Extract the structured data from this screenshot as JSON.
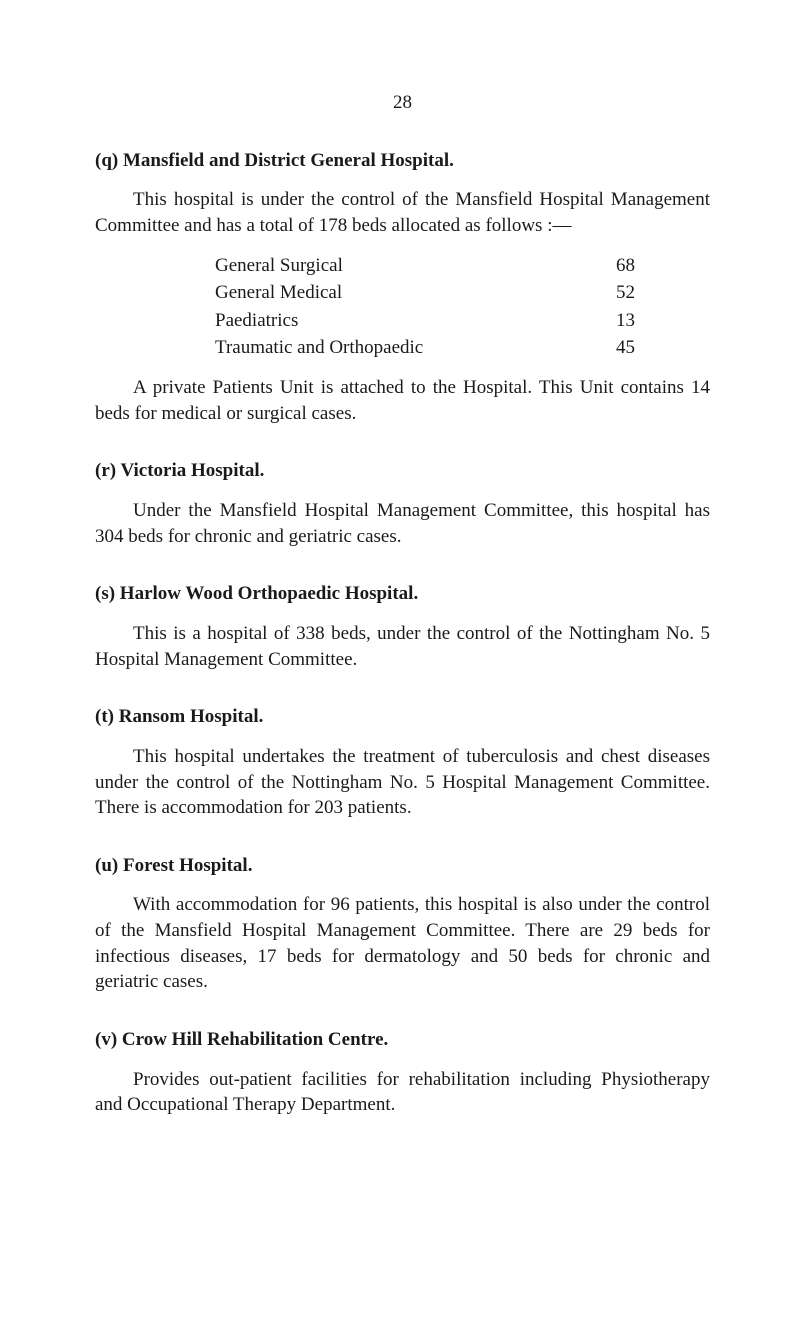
{
  "page_number": "28",
  "sections": {
    "q": {
      "heading": "(q) Mansfield and District General Hospital.",
      "para1": "This hospital is under the control of the Mansfield Hospital Management Committee and has a total of 178 beds allocated as follows :—",
      "beds": [
        {
          "label": "General Surgical",
          "value": "68"
        },
        {
          "label": "General Medical",
          "value": "52"
        },
        {
          "label": "Paediatrics",
          "value": "13"
        },
        {
          "label": "Traumatic and Orthopaedic",
          "value": "45"
        }
      ],
      "para2": "A private Patients Unit is attached to the Hospital. This Unit contains 14 beds for medical or surgical cases."
    },
    "r": {
      "heading": "(r) Victoria Hospital.",
      "para1": "Under the Mansfield Hospital Management Committee, this hospital has 304 beds for chronic and geriatric cases."
    },
    "s": {
      "heading": "(s) Harlow Wood Orthopaedic Hospital.",
      "para1": "This is a hospital of 338 beds, under the control of the Nottingham No. 5 Hospital Management Committee."
    },
    "t": {
      "heading": "(t) Ransom Hospital.",
      "para1": "This hospital undertakes the treatment of tuberculosis and chest diseases under the control of the Nottingham No. 5 Hospital Management Committee. There is accommodation for 203 patients."
    },
    "u": {
      "heading": "(u) Forest Hospital.",
      "para1": "With accommodation for 96 patients, this hospital is also under the control of the Mansfield Hospital Management Committee. There are 29 beds for infectious diseases, 17 beds for dermatology and 50 beds for chronic and geriatric cases."
    },
    "v": {
      "heading": "(v) Crow Hill Rehabilitation Centre.",
      "para1": "Provides out-patient facilities for rehabilitation including Physiotherapy and Occupational Therapy Department."
    }
  }
}
